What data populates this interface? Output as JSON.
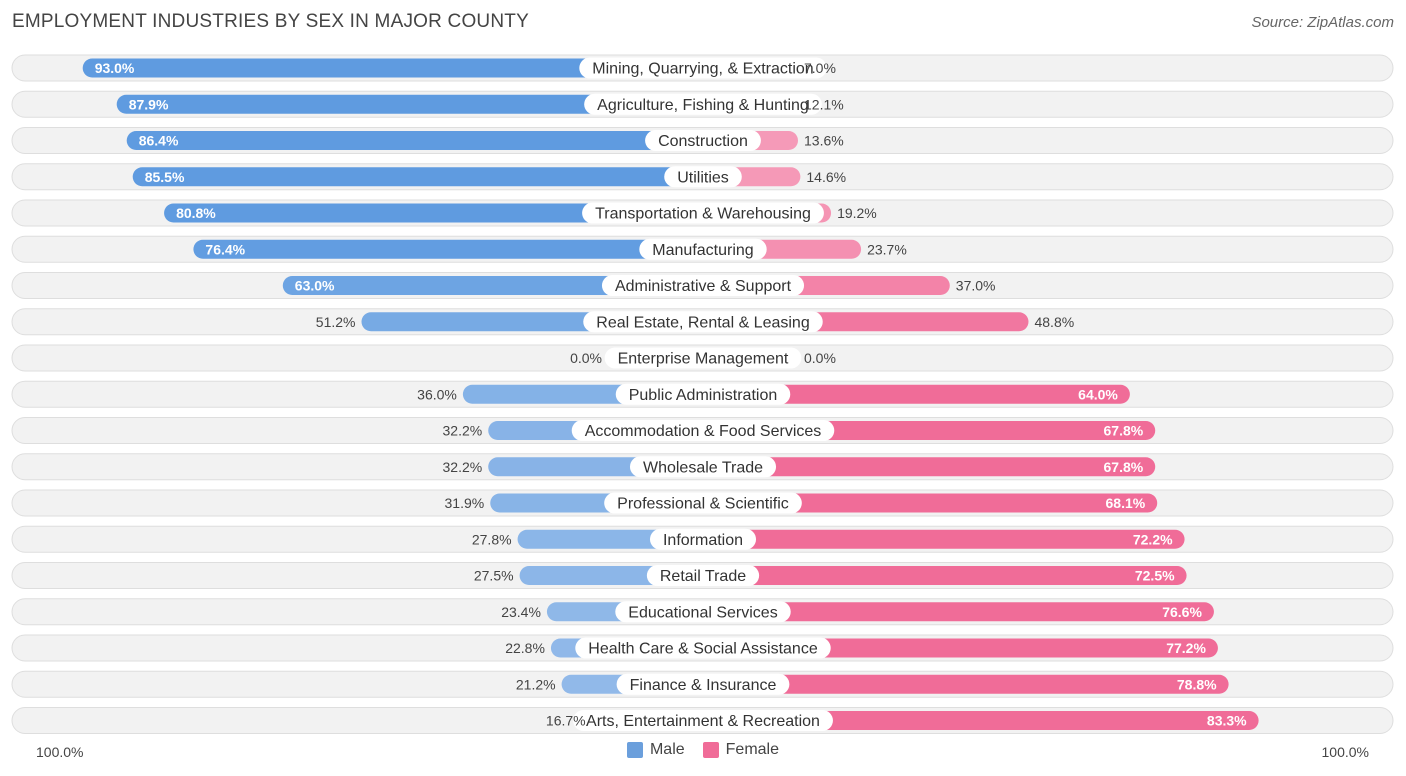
{
  "title": "EMPLOYMENT INDUSTRIES BY SEX IN MAJOR COUNTY",
  "source": "Source: ZipAtlas.com",
  "colors": {
    "male_strong": "#5f9be0",
    "male_light": "#a3c4ec",
    "female_strong": "#f06c98",
    "female_light": "#f7a8c1"
  },
  "axis": {
    "left_label": "100.0%",
    "right_label": "100.0%"
  },
  "legend": [
    {
      "name": "Male",
      "color": "#6b9fdc"
    },
    {
      "name": "Female",
      "color": "#f06c98"
    }
  ],
  "chart_data": {
    "type": "bar",
    "orientation": "horizontal-diverging",
    "title": "EMPLOYMENT INDUSTRIES BY SEX IN MAJOR COUNTY",
    "xlim": [
      -100,
      100
    ],
    "categories": [
      "Mining, Quarrying, & Extraction",
      "Agriculture, Fishing & Hunting",
      "Construction",
      "Utilities",
      "Transportation & Warehousing",
      "Manufacturing",
      "Administrative & Support",
      "Real Estate, Rental & Leasing",
      "Enterprise Management",
      "Public Administration",
      "Accommodation & Food Services",
      "Wholesale Trade",
      "Professional & Scientific",
      "Information",
      "Retail Trade",
      "Educational Services",
      "Health Care & Social Assistance",
      "Finance & Insurance",
      "Arts, Entertainment & Recreation"
    ],
    "series": [
      {
        "name": "Male",
        "values": [
          93.0,
          87.9,
          86.4,
          85.5,
          80.8,
          76.4,
          63.0,
          51.2,
          0.0,
          36.0,
          32.2,
          32.2,
          31.9,
          27.8,
          27.5,
          23.4,
          22.8,
          21.2,
          16.7
        ],
        "labels": [
          "93.0%",
          "87.9%",
          "86.4%",
          "85.5%",
          "80.8%",
          "76.4%",
          "63.0%",
          "51.2%",
          "0.0%",
          "36.0%",
          "32.2%",
          "32.2%",
          "31.9%",
          "27.8%",
          "27.5%",
          "23.4%",
          "22.8%",
          "21.2%",
          "16.7%"
        ]
      },
      {
        "name": "Female",
        "values": [
          7.0,
          12.1,
          13.6,
          14.6,
          19.2,
          23.7,
          37.0,
          48.8,
          0.0,
          64.0,
          67.8,
          67.8,
          68.1,
          72.2,
          72.5,
          76.6,
          77.2,
          78.8,
          83.3
        ],
        "labels": [
          "7.0%",
          "12.1%",
          "13.6%",
          "14.6%",
          "19.2%",
          "23.7%",
          "37.0%",
          "48.8%",
          "0.0%",
          "64.0%",
          "67.8%",
          "67.8%",
          "68.1%",
          "72.2%",
          "72.5%",
          "76.6%",
          "77.2%",
          "78.8%",
          "83.3%"
        ]
      }
    ],
    "axis_labels": [
      "100.0%",
      "100.0%"
    ],
    "legend_position": "bottom-center"
  }
}
